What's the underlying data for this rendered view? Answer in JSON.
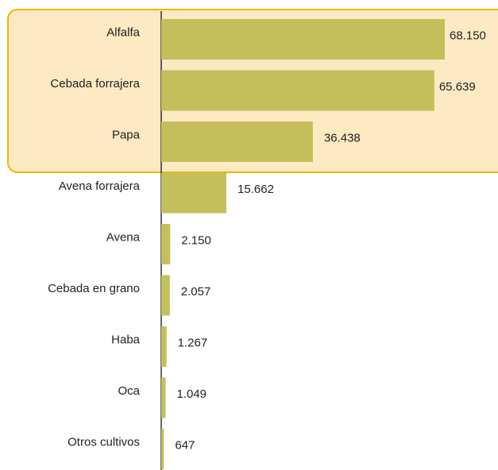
{
  "chart_data": {
    "type": "bar",
    "orientation": "horizontal",
    "categories": [
      "Alfalfa",
      "Cebada forrajera",
      "Papa",
      "Avena forrajera",
      "Avena",
      "Cebada en grano",
      "Haba",
      "Oca",
      "Otros cultivos"
    ],
    "values": [
      68150,
      65639,
      36438,
      15662,
      2150,
      2057,
      1267,
      1049,
      647
    ],
    "value_labels": [
      "68.150",
      "65.639",
      "36.438",
      "15.662",
      "2.150",
      "2.057",
      "1.267",
      "1.049",
      "647"
    ],
    "color": "#c4bf5a"
  }
}
